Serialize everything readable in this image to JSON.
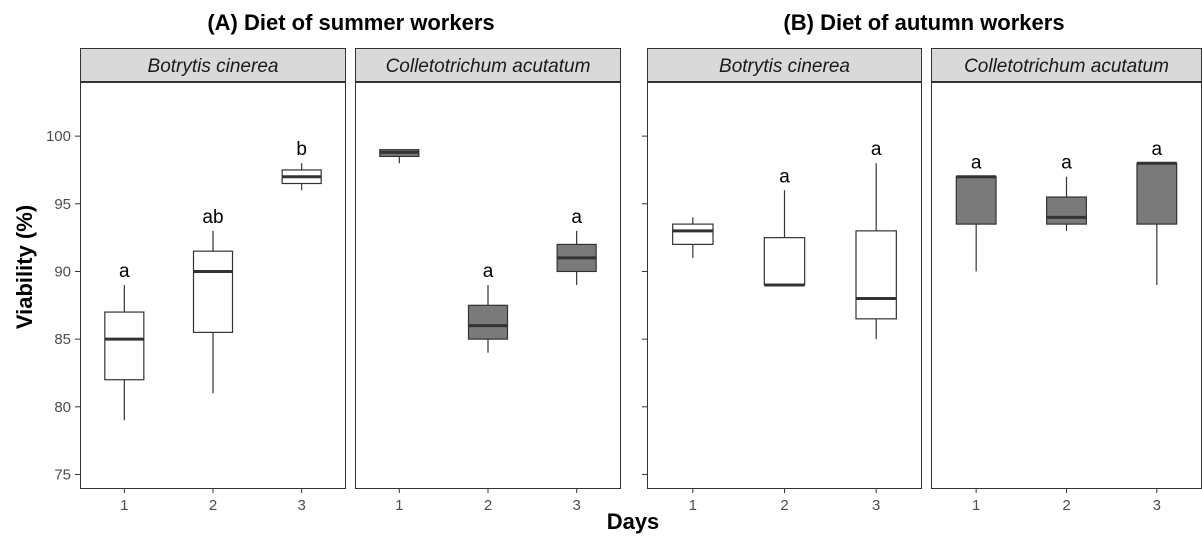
{
  "chart_data": {
    "type": "box",
    "xlabel": "Days",
    "ylabel": "Viability (%)",
    "ylim": [
      74,
      104
    ],
    "yticks": [
      75,
      80,
      85,
      90,
      95,
      100
    ],
    "colors": {
      "white_box": "#ffffff",
      "grey_box": "#7a7a7a",
      "strip_bg": "#d9d9d9",
      "outline": "#333333"
    },
    "groups": [
      {
        "title": "(A) Diet of summer workers",
        "panels": [
          {
            "strip": "Botrytis cinerea",
            "fill": "white",
            "boxes": [
              {
                "day": "1",
                "whisker_low": 79,
                "q1": 82,
                "median": 85,
                "q3": 87,
                "whisker_high": 89,
                "label": "a"
              },
              {
                "day": "2",
                "whisker_low": 81,
                "q1": 85.5,
                "median": 90,
                "q3": 91.5,
                "whisker_high": 93,
                "label": "ab"
              },
              {
                "day": "3",
                "whisker_low": 96,
                "q1": 96.5,
                "median": 97,
                "q3": 97.5,
                "whisker_high": 98,
                "label": "b"
              }
            ]
          },
          {
            "strip": "Colletotrichum acutatum",
            "fill": "grey",
            "boxes": [
              {
                "day": "1",
                "whisker_low": 98,
                "q1": 98.5,
                "median": 98.8,
                "q3": 99,
                "whisker_high": 99,
                "label": ""
              },
              {
                "day": "2",
                "whisker_low": 84,
                "q1": 85,
                "median": 86,
                "q3": 87.5,
                "whisker_high": 89,
                "label": "a"
              },
              {
                "day": "3",
                "whisker_low": 89,
                "q1": 90,
                "median": 91,
                "q3": 92,
                "whisker_high": 93,
                "label": "a"
              }
            ]
          }
        ]
      },
      {
        "title": "(B) Diet of autumn workers",
        "panels": [
          {
            "strip": "Botrytis cinerea",
            "fill": "white",
            "boxes": [
              {
                "day": "1",
                "whisker_low": 91,
                "q1": 92,
                "median": 93,
                "q3": 93.5,
                "whisker_high": 94,
                "label": ""
              },
              {
                "day": "2",
                "whisker_low": 89,
                "q1": 89,
                "median": 89,
                "q3": 92.5,
                "whisker_high": 96,
                "label": "a"
              },
              {
                "day": "3",
                "whisker_low": 85,
                "q1": 86.5,
                "median": 88,
                "q3": 93,
                "whisker_high": 98,
                "label": "a"
              }
            ]
          },
          {
            "strip": "Colletotrichum acutatum",
            "fill": "grey",
            "boxes": [
              {
                "day": "1",
                "whisker_low": 90,
                "q1": 93.5,
                "median": 97,
                "q3": 97,
                "whisker_high": 97,
                "label": "a"
              },
              {
                "day": "2",
                "whisker_low": 93,
                "q1": 93.5,
                "median": 94,
                "q3": 95.5,
                "whisker_high": 97,
                "label": "a"
              },
              {
                "day": "3",
                "whisker_low": 89,
                "q1": 93.5,
                "median": 98,
                "q3": 98,
                "whisker_high": 98,
                "label": "a"
              }
            ]
          }
        ]
      }
    ]
  }
}
